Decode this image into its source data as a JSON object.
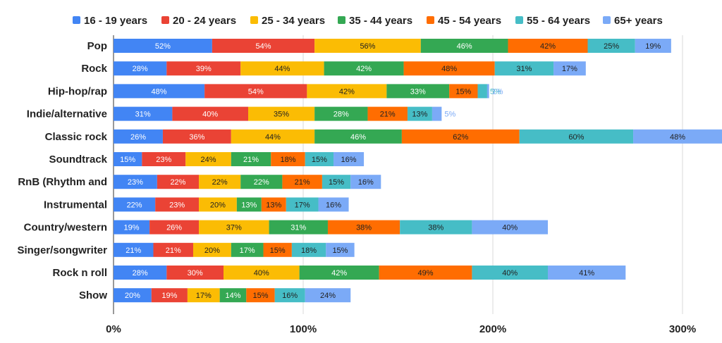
{
  "chart_data": {
    "type": "bar",
    "orientation": "horizontal",
    "stacked": true,
    "title": "",
    "xlabel": "",
    "ylabel": "",
    "xlim": [
      0,
      320
    ],
    "x_ticks": [
      "0%",
      "100%",
      "200%",
      "300%"
    ],
    "x_tick_values": [
      0,
      100,
      200,
      300
    ],
    "grid": true,
    "legend_position": "top",
    "categories": [
      "Pop",
      "Rock",
      "Hip-hop/rap",
      "Indie/alternative",
      "Classic rock",
      "Soundtrack",
      "RnB (Rhythm and",
      "Instrumental",
      "Country/western",
      "Singer/songwriter",
      "Rock n roll",
      "Show"
    ],
    "series": [
      {
        "name": "16 - 19 years",
        "color": "#4285F4",
        "label_color": "#ffffff",
        "values": [
          52,
          28,
          48,
          31,
          26,
          15,
          23,
          22,
          19,
          21,
          28,
          20
        ]
      },
      {
        "name": "20 - 24 years",
        "color": "#EA4335",
        "label_color": "#ffffff",
        "values": [
          54,
          39,
          54,
          40,
          36,
          23,
          22,
          23,
          26,
          21,
          30,
          19
        ]
      },
      {
        "name": "25 - 34 years",
        "color": "#FBBC04",
        "label_color": "#222222",
        "values": [
          56,
          44,
          42,
          35,
          44,
          24,
          22,
          20,
          37,
          20,
          40,
          17
        ]
      },
      {
        "name": "35 - 44 years",
        "color": "#34A853",
        "label_color": "#ffffff",
        "values": [
          46,
          42,
          33,
          28,
          46,
          21,
          22,
          13,
          31,
          17,
          42,
          14
        ]
      },
      {
        "name": "45 - 54 years",
        "color": "#FF6D01",
        "label_color": "#222222",
        "values": [
          42,
          48,
          15,
          21,
          62,
          18,
          21,
          13,
          38,
          15,
          49,
          15
        ]
      },
      {
        "name": "55 - 64 years",
        "color": "#46BDC6",
        "label_color": "#222222",
        "values": [
          25,
          31,
          5,
          13,
          60,
          15,
          15,
          17,
          38,
          18,
          40,
          16
        ]
      },
      {
        "name": "65+ years",
        "color": "#7BAAF7",
        "label_color": "#222222",
        "values": [
          19,
          17,
          1,
          5,
          48,
          16,
          16,
          16,
          40,
          15,
          41,
          24
        ]
      }
    ],
    "value_labels": [
      [
        "52%",
        "54%",
        "56%",
        "46%",
        "42%",
        "25%",
        "19%"
      ],
      [
        "28%",
        "39%",
        "44%",
        "42%",
        "48%",
        "31%",
        "17%"
      ],
      [
        "48%",
        "54%",
        "42%",
        "33%",
        "15%",
        "5%",
        "1%"
      ],
      [
        "31%",
        "40%",
        "35%",
        "28%",
        "21%",
        "13%",
        "5%"
      ],
      [
        "26%",
        "36%",
        "44%",
        "46%",
        "62%",
        "60%",
        "48%"
      ],
      [
        "15%",
        "23%",
        "24%",
        "21%",
        "18%",
        "15%",
        "16%"
      ],
      [
        "23%",
        "22%",
        "22%",
        "22%",
        "21%",
        "15%",
        "16%"
      ],
      [
        "22%",
        "23%",
        "20%",
        "13%",
        "13%",
        "17%",
        "16%"
      ],
      [
        "19%",
        "26%",
        "37%",
        "31%",
        "38%",
        "38%",
        "40%"
      ],
      [
        "21%",
        "21%",
        "20%",
        "17%",
        "15%",
        "18%",
        "15%"
      ],
      [
        "28%",
        "30%",
        "40%",
        "42%",
        "49%",
        "40%",
        "41%"
      ],
      [
        "20%",
        "19%",
        "17%",
        "14%",
        "15%",
        "16%",
        "24%"
      ]
    ]
  }
}
